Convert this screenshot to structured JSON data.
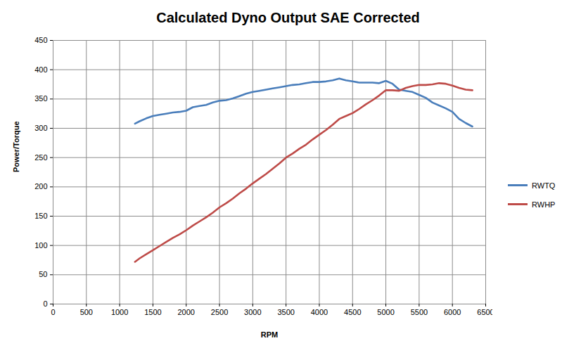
{
  "chart_data": {
    "type": "line",
    "title": "Calculated Dyno Output SAE Corrected",
    "x_label": "RPM",
    "y_label": "Power/Torque",
    "x": [
      1230,
      1300,
      1400,
      1500,
      1600,
      1700,
      1800,
      1900,
      2000,
      2100,
      2200,
      2300,
      2400,
      2500,
      2600,
      2700,
      2800,
      2900,
      3000,
      3100,
      3200,
      3300,
      3400,
      3500,
      3600,
      3700,
      3800,
      3900,
      4000,
      4100,
      4200,
      4300,
      4400,
      4500,
      4600,
      4700,
      4800,
      4900,
      5000,
      5100,
      5200,
      5300,
      5400,
      5500,
      5600,
      5700,
      5800,
      5900,
      6000,
      6100,
      6200,
      6300
    ],
    "series": [
      {
        "name": "RWTQ",
        "color": "#4A7EBB",
        "values": [
          308,
          312,
          317,
          321,
          323,
          325,
          327,
          328,
          330,
          336,
          338,
          340,
          344,
          347,
          348,
          351,
          355,
          359,
          362,
          364,
          366,
          368,
          370,
          372,
          374,
          375,
          377,
          379,
          379,
          380,
          382,
          385,
          382,
          380,
          378,
          378,
          378,
          377,
          381,
          376,
          366,
          364,
          362,
          357,
          352,
          344,
          339,
          334,
          328,
          316,
          309,
          303
        ]
      },
      {
        "name": "RWHP",
        "color": "#BE4B48",
        "values": [
          72,
          78,
          85,
          92,
          99,
          106,
          113,
          119,
          126,
          134,
          141,
          148,
          156,
          165,
          172,
          180,
          189,
          197,
          206,
          214,
          222,
          231,
          240,
          250,
          257,
          265,
          272,
          281,
          289,
          297,
          306,
          316,
          321,
          326,
          333,
          341,
          348,
          356,
          365,
          365,
          364,
          369,
          372,
          374,
          374,
          375,
          377,
          376,
          373,
          369,
          366,
          365
        ]
      }
    ],
    "xlim": [
      0,
      6500
    ],
    "xticks": [
      0,
      500,
      1000,
      1500,
      2000,
      2500,
      3000,
      3500,
      4000,
      4500,
      5000,
      5500,
      6000,
      6500
    ],
    "ylim": [
      0,
      450
    ],
    "yticks": [
      0,
      50,
      100,
      150,
      200,
      250,
      300,
      350,
      400,
      450
    ],
    "grid": true,
    "legend": "right"
  }
}
